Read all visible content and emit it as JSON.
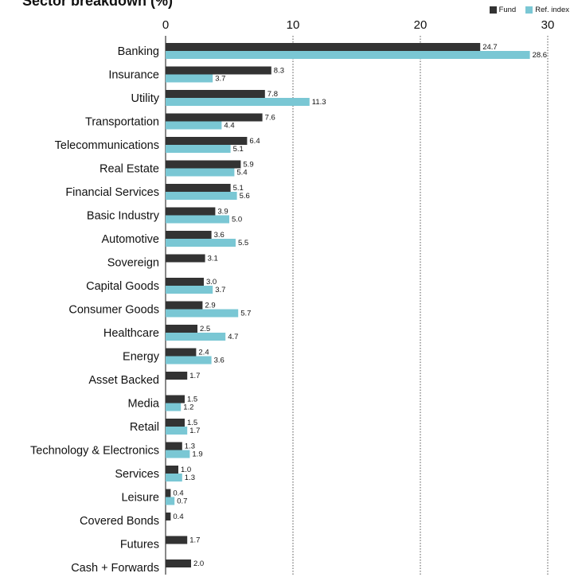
{
  "chart_data": {
    "type": "bar",
    "orientation": "horizontal",
    "title": "Sector breakdown (%)",
    "categories": [
      "Banking",
      "Insurance",
      "Utility",
      "Transportation",
      "Telecommunications",
      "Real Estate",
      "Financial Services",
      "Basic Industry",
      "Automotive",
      "Sovereign",
      "Capital Goods",
      "Consumer Goods",
      "Healthcare",
      "Energy",
      "Asset Backed",
      "Media",
      "Retail",
      "Technology & Electronics",
      "Services",
      "Leisure",
      "Covered Bonds",
      "Futures",
      "Cash + Forwards"
    ],
    "series": [
      {
        "name": "Fund",
        "color": "#333333",
        "values": [
          24.7,
          8.3,
          7.8,
          7.6,
          6.4,
          5.9,
          5.1,
          3.9,
          3.6,
          3.1,
          3.0,
          2.9,
          2.5,
          2.4,
          1.7,
          1.5,
          1.5,
          1.3,
          1.0,
          0.4,
          0.4,
          1.7,
          2.0
        ],
        "labels": [
          "24.7",
          "8.3",
          "7.8",
          "7.6",
          "6.4",
          "5.9",
          "5.1",
          "3.9",
          "3.6",
          "3.1",
          "3.0",
          "2.9",
          "2.5",
          "2.4",
          "1.7",
          "1.5",
          "1.5",
          "1.3",
          "1.0",
          "0.4",
          "0.4",
          "1.7",
          "2.0"
        ]
      },
      {
        "name": "Ref. index",
        "color": "#7ac7d4",
        "values": [
          28.6,
          3.7,
          11.3,
          4.4,
          5.1,
          5.4,
          5.6,
          5.0,
          5.5,
          null,
          3.7,
          5.7,
          4.7,
          3.6,
          null,
          1.2,
          1.7,
          1.9,
          1.3,
          0.7,
          null,
          null,
          null
        ],
        "labels": [
          "28.6",
          "3.7",
          "11.3",
          "4.4",
          "5.1",
          "5.4",
          "5.6",
          "5.0",
          "5.5",
          null,
          "3.7",
          "5.7",
          "4.7",
          "3.6",
          null,
          "1.2",
          "1.7",
          "1.9",
          "1.3",
          "0.7",
          null,
          null,
          null
        ]
      }
    ],
    "xlim": [
      0,
      30
    ],
    "xticks": [
      "0",
      "10",
      "20",
      "30"
    ],
    "grid": true,
    "legend_position": "top-right"
  }
}
